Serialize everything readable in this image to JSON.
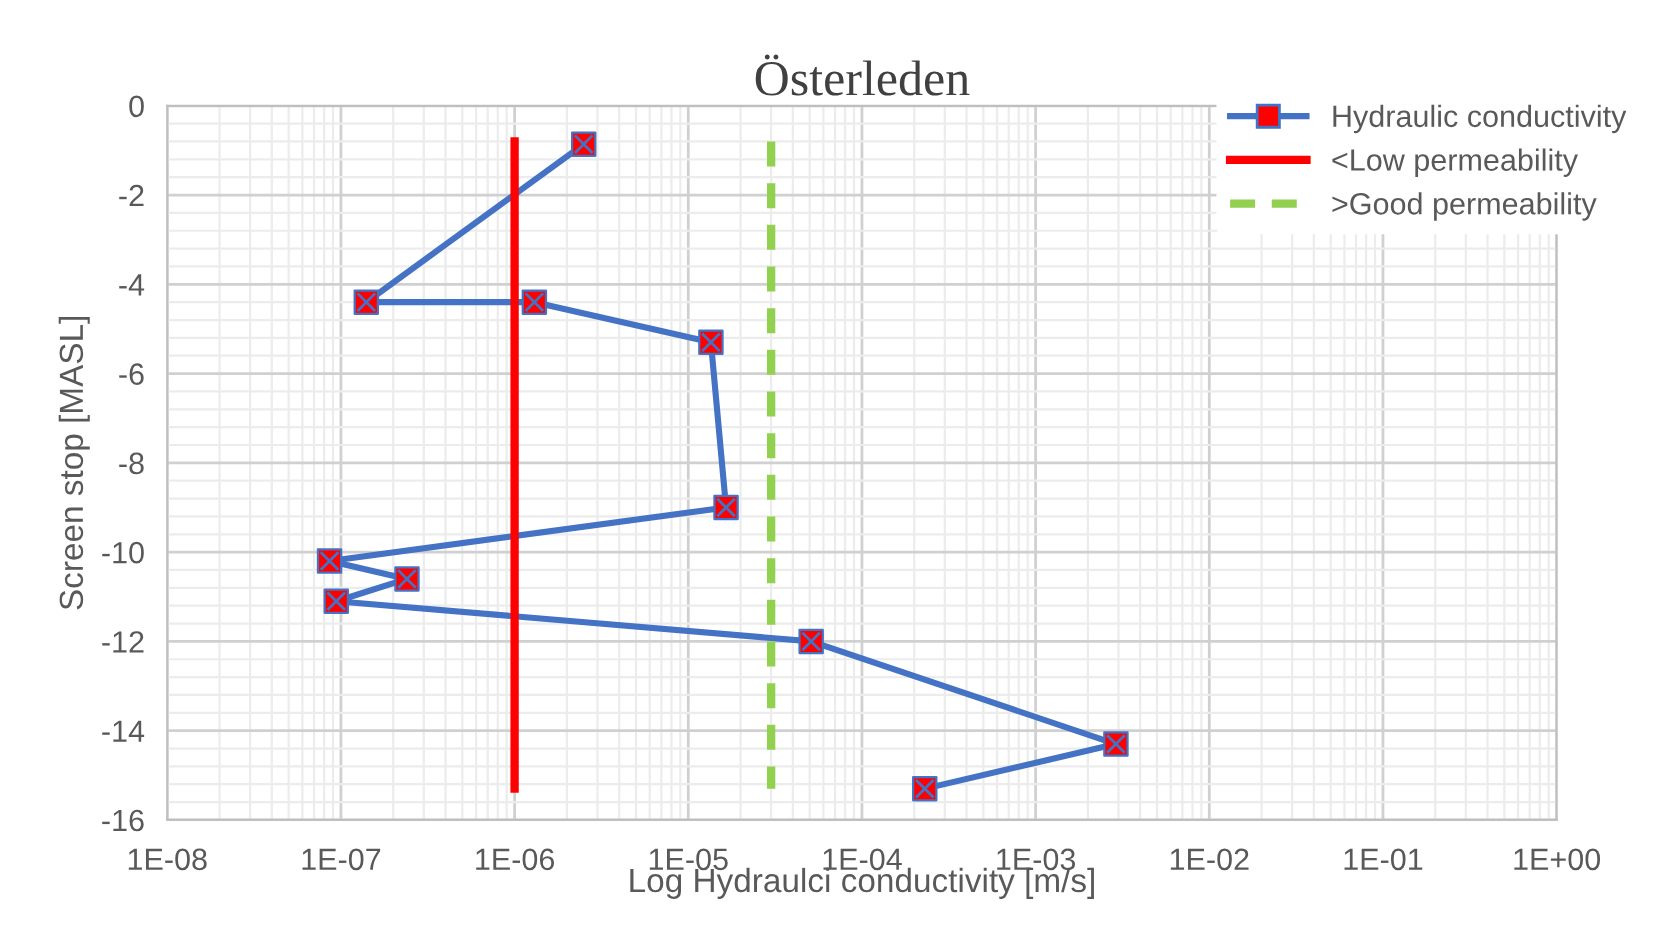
{
  "chart_data": {
    "type": "line",
    "title": "Österleden",
    "xlabel": "Log Hydraulci conductivity [m/s]",
    "ylabel": "Screen stop [MASL]",
    "series": [
      {
        "name": "Hydraulic conductivity",
        "color": "#4472c4",
        "colors": [
          "#ff0000",
          "#ff0000",
          "#ff0000",
          "#ff0000",
          "#ff0000",
          "#ff0000",
          "#ff0000",
          "#ff0000",
          "#ff0000",
          "#ff0000",
          "#ff0000"
        ],
        "marker": "square",
        "line_style": "solid",
        "x": [
          2.5e-06,
          1.4e-07,
          1.3e-06,
          1.35e-05,
          1.65e-05,
          8.6e-08,
          2.4e-07,
          9.4e-08,
          5.1e-05,
          0.0029,
          0.00023
        ],
        "values": [
          -0.86,
          -4.4,
          -4.4,
          -5.3,
          -9.0,
          -10.2,
          -10.6,
          -11.1,
          -12.0,
          -14.3,
          -15.3
        ]
      },
      {
        "name": "<Low permeability",
        "color": "#ff0000",
        "marker": "none",
        "line_style": "solid",
        "x": [
          1e-06,
          1e-06
        ],
        "values": [
          -0.8,
          -15.3
        ]
      },
      {
        "name": ">Good permeability",
        "color": "#92d050",
        "marker": "none",
        "line_style": "dashed",
        "x": [
          3e-05,
          3e-05
        ],
        "values": [
          -0.8,
          -15.3
        ]
      }
    ],
    "log": "x",
    "xlim": [
      1e-08,
      1
    ],
    "xticks": [
      {
        "value": 1e-08,
        "label": "1E-08"
      },
      {
        "value": 1e-07,
        "label": "1E-07"
      },
      {
        "value": 1e-06,
        "label": "1E-06"
      },
      {
        "value": 1e-05,
        "label": "1E-05"
      },
      {
        "value": 0.0001,
        "label": "1E-04"
      },
      {
        "value": 0.001,
        "label": "1E-03"
      },
      {
        "value": 0.01,
        "label": "1E-02"
      },
      {
        "value": 0.1,
        "label": "1E-01"
      },
      {
        "value": 1,
        "label": "1E+00"
      }
    ],
    "ylim": [
      -16,
      0
    ],
    "yticks": [
      -16,
      -14,
      -12,
      -10,
      -8,
      -6,
      -4,
      -2,
      0
    ],
    "grid": true,
    "legend": "top right"
  }
}
